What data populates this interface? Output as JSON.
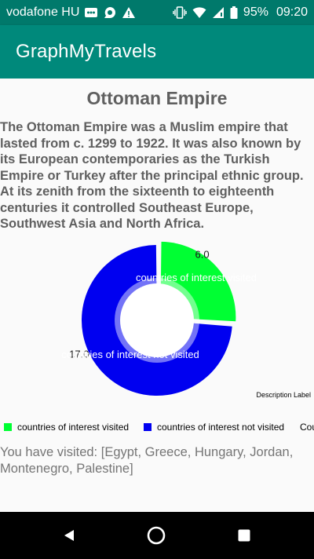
{
  "status_bar": {
    "carrier": "vodafone HU",
    "battery": "95%",
    "time": "09:20",
    "icons": [
      "voicemail-icon",
      "chat-bubble-icon",
      "warning-icon",
      "vibrate-icon",
      "wifi-icon",
      "signal-icon",
      "battery-icon"
    ]
  },
  "app_bar": {
    "title": "GraphMyTravels"
  },
  "page": {
    "heading": "Ottoman Empire",
    "description": "The Ottoman Empire was a Muslim empire that lasted from c. 1299 to 1922. It was also known by its European contemporaries as the Turkish Empire or Turkey after the principal ethnic group. At its zenith from the sixteenth to eighteenth centuries it controlled Southeast Europe, Southwest Asia and North Africa.",
    "visited_text": "You have visited: [Egypt, Greece, Hungary, Jordan, Montenegro, Palestine]"
  },
  "chart_data": {
    "type": "pie",
    "style": "donut",
    "slices": [
      {
        "label": "countries of interest visited",
        "value": 6.0,
        "value_label": "6.0",
        "color": "#00ff33"
      },
      {
        "label": "countries of interest not visited",
        "value": 17.0,
        "value_label": "17.0",
        "color": "#0000f0"
      }
    ],
    "description_label": "Description Label",
    "legend": [
      "countries of interest visited",
      "countries of interest not visited",
      "Cou"
    ],
    "legend_placement": "bottom-left"
  },
  "nav_bar": {
    "icons": [
      "back-icon",
      "home-icon",
      "recents-icon"
    ]
  }
}
